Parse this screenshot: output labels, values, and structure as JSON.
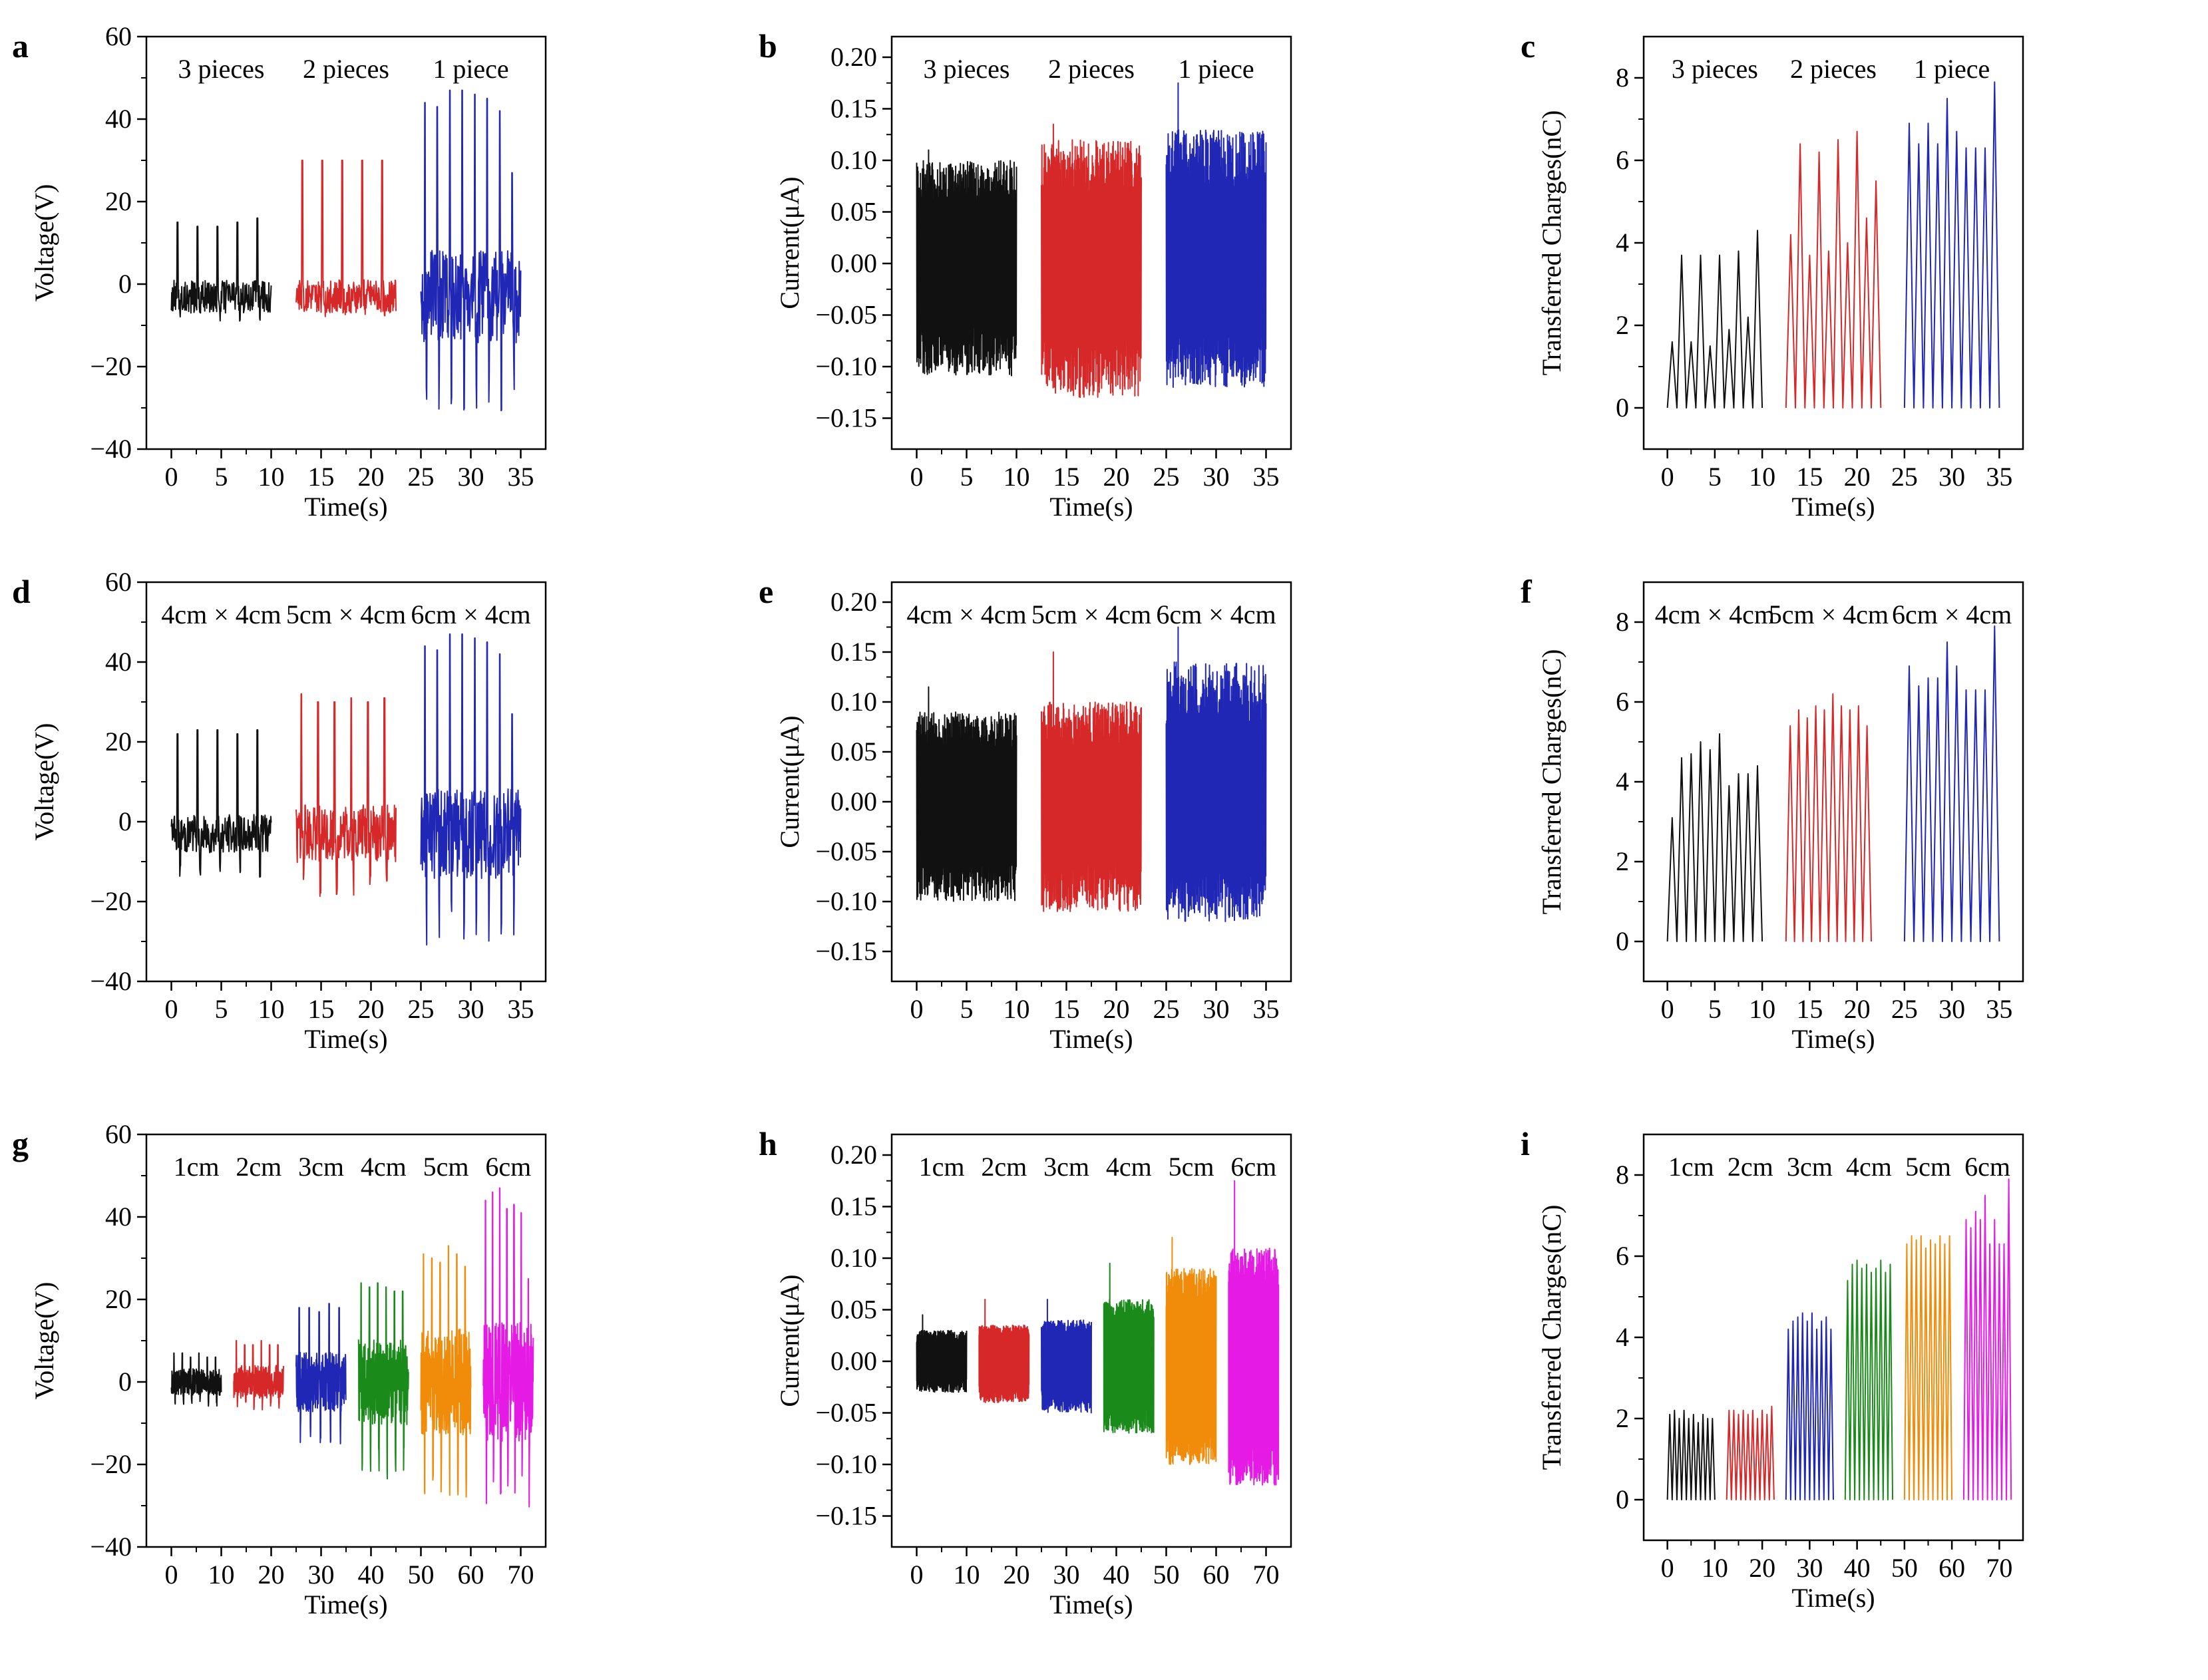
{
  "colors": {
    "black": "#111111",
    "red": "#d62828",
    "blue": "#1f27b4",
    "green": "#1a8a1a",
    "orange": "#f08c0a",
    "magenta": "#e51be5"
  },
  "chart_data": [
    {
      "panel": "a",
      "type": "line",
      "xlabel": "Time(s)",
      "ylabel": "Voltage(V)",
      "xlim": [
        -2.5,
        37.5
      ],
      "ylim": [
        -40,
        60
      ],
      "xticks": [
        "0",
        "5",
        "10",
        "15",
        "20",
        "25",
        "30",
        "35"
      ],
      "yticks": [
        "−40",
        "−20",
        "0",
        "20",
        "40",
        "60"
      ],
      "series": [
        {
          "name": "3 pieces",
          "color": "black",
          "x_range": [
            0,
            10
          ],
          "baseline": -3,
          "amplitude": 5,
          "spike_count": 5,
          "spike_values": [
            15,
            14,
            14,
            15,
            16
          ],
          "min": -9
        },
        {
          "name": "2 pieces",
          "color": "red",
          "x_range": [
            12.5,
            22.5
          ],
          "baseline": -3,
          "amplitude": 5,
          "spike_count": 5,
          "spike_values": [
            30,
            30,
            30,
            30,
            30
          ],
          "min": -8
        },
        {
          "name": "1 piece",
          "color": "blue",
          "x_range": [
            25,
            35
          ],
          "baseline": -3,
          "amplitude": 14,
          "spike_count": 8,
          "spike_values": [
            44,
            43,
            47,
            47,
            46,
            45,
            42,
            27
          ],
          "min": -31
        }
      ]
    },
    {
      "panel": "b",
      "type": "line",
      "xlabel": "Time(s)",
      "ylabel": "Current(μA)",
      "xlim": [
        -2.5,
        37.5
      ],
      "ylim": [
        -0.18,
        0.22
      ],
      "xticks": [
        "0",
        "5",
        "10",
        "15",
        "20",
        "25",
        "30",
        "35"
      ],
      "yticks": [
        "−0.15",
        "−0.10",
        "−0.05",
        "0.00",
        "0.05",
        "0.10",
        "0.15",
        "0.20"
      ],
      "series": [
        {
          "name": "3 pieces",
          "color": "black",
          "x_range": [
            0,
            10
          ],
          "upper": 0.1,
          "lower": -0.11,
          "peak": 0.11
        },
        {
          "name": "2 pieces",
          "color": "red",
          "x_range": [
            12.5,
            22.5
          ],
          "upper": 0.12,
          "lower": -0.13,
          "peak": 0.135
        },
        {
          "name": "1 piece",
          "color": "blue",
          "x_range": [
            25,
            35
          ],
          "upper": 0.13,
          "lower": -0.12,
          "peak": 0.175
        }
      ]
    },
    {
      "panel": "c",
      "type": "line",
      "xlabel": "Time(s)",
      "ylabel": "Transferred Charges(nC)",
      "xlim": [
        -2.5,
        37.5
      ],
      "ylim": [
        -1,
        9
      ],
      "xticks": [
        "0",
        "5",
        "10",
        "15",
        "20",
        "25",
        "30",
        "35"
      ],
      "yticks": [
        "0",
        "2",
        "4",
        "6",
        "8"
      ],
      "series": [
        {
          "name": "3 pieces",
          "color": "black",
          "x_range": [
            0,
            10
          ],
          "peaks": [
            1.6,
            3.7,
            1.6,
            3.7,
            1.5,
            3.7,
            1.9,
            3.8,
            2.2,
            4.3
          ]
        },
        {
          "name": "2 pieces",
          "color": "red",
          "x_range": [
            12.5,
            22.5
          ],
          "peaks": [
            4.2,
            6.4,
            3.7,
            6.2,
            3.8,
            6.5,
            4.0,
            6.7,
            4.6,
            5.5
          ]
        },
        {
          "name": "1 piece",
          "color": "blue",
          "x_range": [
            25,
            35
          ],
          "peaks": [
            6.9,
            6.4,
            6.9,
            6.4,
            7.5,
            6.7,
            6.3,
            6.3,
            6.3,
            7.9
          ]
        }
      ]
    },
    {
      "panel": "d",
      "type": "line",
      "xlabel": "Time(s)",
      "ylabel": "Voltage(V)",
      "xlim": [
        -2.5,
        37.5
      ],
      "ylim": [
        -40,
        60
      ],
      "xticks": [
        "0",
        "5",
        "10",
        "15",
        "20",
        "25",
        "30",
        "35"
      ],
      "yticks": [
        "−40",
        "−20",
        "0",
        "20",
        "40",
        "60"
      ],
      "series": [
        {
          "name": "4cm × 4cm",
          "color": "black",
          "x_range": [
            0,
            10
          ],
          "baseline": -3,
          "amplitude": 6,
          "spike_count": 5,
          "spike_values": [
            22,
            23,
            23,
            22,
            23
          ],
          "min": -14
        },
        {
          "name": "5cm × 4cm",
          "color": "red",
          "x_range": [
            12.5,
            22.5
          ],
          "baseline": -3,
          "amplitude": 9,
          "spike_count": 6,
          "spike_values": [
            32,
            30,
            30,
            31,
            30,
            31
          ],
          "min": -19
        },
        {
          "name": "6cm × 4cm",
          "color": "blue",
          "x_range": [
            25,
            35
          ],
          "baseline": -3,
          "amplitude": 14,
          "spike_count": 8,
          "spike_values": [
            44,
            43,
            47,
            47,
            46,
            45,
            42,
            27
          ],
          "min": -31
        }
      ]
    },
    {
      "panel": "e",
      "type": "line",
      "xlabel": "Time(s)",
      "ylabel": "Current(μA)",
      "xlim": [
        -2.5,
        37.5
      ],
      "ylim": [
        -0.18,
        0.22
      ],
      "xticks": [
        "0",
        "5",
        "10",
        "15",
        "20",
        "25",
        "30",
        "35"
      ],
      "yticks": [
        "−0.15",
        "−0.10",
        "−0.05",
        "0.00",
        "0.05",
        "0.10",
        "0.15",
        "0.20"
      ],
      "series": [
        {
          "name": "4cm × 4cm",
          "color": "black",
          "x_range": [
            0,
            10
          ],
          "upper": 0.09,
          "lower": -0.1,
          "peak": 0.115
        },
        {
          "name": "5cm × 4cm",
          "color": "red",
          "x_range": [
            12.5,
            22.5
          ],
          "upper": 0.1,
          "lower": -0.11,
          "peak": 0.15
        },
        {
          "name": "6cm × 4cm",
          "color": "blue",
          "x_range": [
            25,
            35
          ],
          "upper": 0.14,
          "lower": -0.12,
          "peak": 0.175
        }
      ]
    },
    {
      "panel": "f",
      "type": "line",
      "xlabel": "Time(s)",
      "ylabel": "Transferred Charges(nC)",
      "xlim": [
        -2.5,
        37.5
      ],
      "ylim": [
        -1,
        9
      ],
      "xticks": [
        "0",
        "5",
        "10",
        "15",
        "20",
        "25",
        "30",
        "35"
      ],
      "yticks": [
        "0",
        "2",
        "4",
        "6",
        "8"
      ],
      "series": [
        {
          "name": "4cm × 4cm",
          "color": "black",
          "x_range": [
            0,
            10
          ],
          "peaks": [
            3.1,
            4.6,
            4.7,
            5.0,
            4.8,
            5.2,
            3.9,
            4.2,
            4.2,
            4.4
          ]
        },
        {
          "name": "5cm × 4cm",
          "color": "red",
          "x_range": [
            12.5,
            21.5
          ],
          "peaks": [
            5.4,
            5.8,
            5.6,
            5.9,
            5.8,
            6.2,
            5.9,
            5.8,
            5.9,
            5.4
          ]
        },
        {
          "name": "6cm × 4cm",
          "color": "blue",
          "x_range": [
            25,
            35
          ],
          "peaks": [
            6.9,
            6.4,
            6.6,
            6.6,
            7.5,
            6.9,
            6.3,
            6.3,
            6.3,
            7.9
          ]
        }
      ]
    },
    {
      "panel": "g",
      "type": "line",
      "xlabel": "Time(s)",
      "ylabel": "Voltage(V)",
      "xlim": [
        -5,
        75
      ],
      "ylim": [
        -40,
        60
      ],
      "xticks": [
        "0",
        "10",
        "20",
        "30",
        "40",
        "50",
        "60",
        "70"
      ],
      "yticks": [
        "−40",
        "−20",
        "0",
        "20",
        "40",
        "60"
      ],
      "series": [
        {
          "name": "1cm",
          "color": "black",
          "x_range": [
            0,
            10
          ],
          "baseline": 0,
          "amplitude": 4,
          "spike_count": 6,
          "spike_values": [
            7,
            7,
            6,
            7,
            6,
            6
          ],
          "min": -6
        },
        {
          "name": "2cm",
          "color": "red",
          "x_range": [
            12.5,
            22.5
          ],
          "baseline": 0,
          "amplitude": 5,
          "spike_count": 6,
          "spike_values": [
            10,
            9,
            9,
            10,
            9,
            9
          ],
          "min": -7
        },
        {
          "name": "3cm",
          "color": "blue",
          "x_range": [
            25,
            35
          ],
          "baseline": 0,
          "amplitude": 9,
          "spike_count": 5,
          "spike_values": [
            18,
            18,
            17,
            19,
            18
          ],
          "min": -15
        },
        {
          "name": "4cm",
          "color": "green",
          "x_range": [
            37.5,
            47.5
          ],
          "baseline": 0,
          "amplitude": 13,
          "spike_count": 6,
          "spike_values": [
            24,
            23,
            24,
            23,
            22,
            22
          ],
          "min": -24
        },
        {
          "name": "5cm",
          "color": "orange",
          "x_range": [
            50,
            60
          ],
          "baseline": 0,
          "amplitude": 16,
          "spike_count": 6,
          "spike_values": [
            31,
            30,
            29,
            33,
            31,
            28
          ],
          "min": -29
        },
        {
          "name": "6cm",
          "color": "magenta",
          "x_range": [
            62.5,
            72.5
          ],
          "baseline": 0,
          "amplitude": 18,
          "spike_count": 7,
          "spike_values": [
            44,
            46,
            47,
            42,
            43,
            41,
            25
          ],
          "min": -31
        }
      ]
    },
    {
      "panel": "h",
      "type": "line",
      "xlabel": "Time(s)",
      "ylabel": "Current(μA)",
      "xlim": [
        -5,
        75
      ],
      "ylim": [
        -0.18,
        0.22
      ],
      "xticks": [
        "0",
        "10",
        "20",
        "30",
        "40",
        "50",
        "60",
        "70"
      ],
      "yticks": [
        "−0.15",
        "−0.10",
        "−0.05",
        "0.00",
        "0.05",
        "0.10",
        "0.15",
        "0.20"
      ],
      "series": [
        {
          "name": "1cm",
          "color": "black",
          "x_range": [
            0,
            10
          ],
          "upper": 0.03,
          "lower": -0.03,
          "peak": 0.045
        },
        {
          "name": "2cm",
          "color": "red",
          "x_range": [
            12.5,
            22.5
          ],
          "upper": 0.035,
          "lower": -0.04,
          "peak": 0.06
        },
        {
          "name": "3cm",
          "color": "blue",
          "x_range": [
            25,
            35
          ],
          "upper": 0.04,
          "lower": -0.05,
          "peak": 0.06
        },
        {
          "name": "4cm",
          "color": "green",
          "x_range": [
            37.5,
            47.5
          ],
          "upper": 0.06,
          "lower": -0.07,
          "peak": 0.095
        },
        {
          "name": "5cm",
          "color": "orange",
          "x_range": [
            50,
            60
          ],
          "upper": 0.09,
          "lower": -0.1,
          "peak": 0.12
        },
        {
          "name": "6cm",
          "color": "magenta",
          "x_range": [
            62.5,
            72.5
          ],
          "upper": 0.11,
          "lower": -0.12,
          "peak": 0.175
        }
      ]
    },
    {
      "panel": "i",
      "type": "line",
      "xlabel": "Time(s)",
      "ylabel": "Transferred Charges(nC)",
      "xlim": [
        -5,
        75
      ],
      "ylim": [
        -1,
        9
      ],
      "xticks": [
        "0",
        "10",
        "20",
        "30",
        "40",
        "50",
        "60",
        "70"
      ],
      "yticks": [
        "0",
        "2",
        "4",
        "6",
        "8"
      ],
      "series": [
        {
          "name": "1cm",
          "color": "black",
          "x_range": [
            0,
            10
          ],
          "peaks": [
            2.1,
            2.2,
            2.0,
            2.2,
            2.0,
            2.1,
            1.9,
            2.1,
            2.0,
            2.0
          ]
        },
        {
          "name": "2cm",
          "color": "red",
          "x_range": [
            12.5,
            22.5
          ],
          "peaks": [
            2.2,
            2.2,
            2.1,
            2.2,
            2.1,
            2.2,
            2.0,
            2.2,
            2.1,
            2.3
          ]
        },
        {
          "name": "3cm",
          "color": "blue",
          "x_range": [
            25,
            35
          ],
          "peaks": [
            4.2,
            4.4,
            4.5,
            4.6,
            4.4,
            4.6,
            4.2,
            4.4,
            4.5,
            4.2
          ]
        },
        {
          "name": "4cm",
          "color": "green",
          "x_range": [
            37.5,
            47.5
          ],
          "peaks": [
            5.4,
            5.8,
            5.9,
            5.7,
            5.8,
            5.6,
            5.7,
            5.9,
            5.6,
            5.8
          ]
        },
        {
          "name": "5cm",
          "color": "orange",
          "x_range": [
            50,
            60
          ],
          "peaks": [
            6.3,
            6.5,
            6.4,
            6.5,
            6.2,
            6.4,
            6.3,
            6.5,
            6.3,
            6.5
          ]
        },
        {
          "name": "6cm",
          "color": "magenta",
          "x_range": [
            62.5,
            72.5
          ],
          "peaks": [
            6.9,
            6.7,
            7.1,
            6.9,
            7.5,
            6.3,
            6.9,
            6.3,
            6.3,
            7.9
          ]
        }
      ]
    }
  ]
}
